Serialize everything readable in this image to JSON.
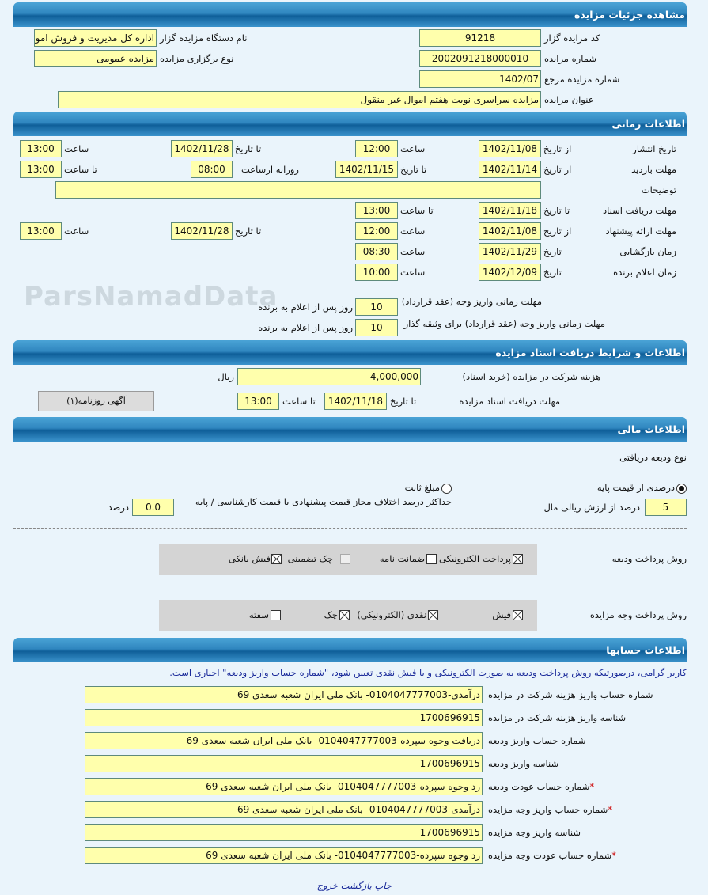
{
  "watermark": "ParsNamadData",
  "s1": {
    "title": "مشاهده جزئیات مزایده",
    "code_label": "کد مزایده گزار",
    "code": "91218",
    "org_label": "نام دستگاه مزایده گزار",
    "org": "اداره کل مدیریت و فروش اموال",
    "num_label": "شماره مزایده",
    "num": "2002091218000010",
    "type_label": "نوع برگزاری مزایده",
    "type": "مزایده عمومی",
    "ref_label": "شماره مزایده مرجع",
    "ref": "1402/07",
    "subject_label": "عنوان مزایده",
    "subject": "مزایده سراسری نوبت هفتم اموال غیر منقول"
  },
  "s2": {
    "title": "اطلاعات زمانی",
    "from_date": "از تاریخ",
    "to_date": "تا تاریخ",
    "date": "تاریخ",
    "time": "ساعت",
    "to_time": "تا ساعت",
    "daily_from": "روزانه ازساعت",
    "publish_label": "تاریخ انتشار",
    "publish_from": "1402/11/08",
    "publish_from_time": "12:00",
    "publish_to": "1402/11/28",
    "publish_to_time": "13:00",
    "visit_label": "مهلت بازدید",
    "visit_from": "1402/11/14",
    "visit_to": "1402/11/15",
    "visit_daily_from": "08:00",
    "visit_to_time": "13:00",
    "desc_label": "توضیحات",
    "desc": "",
    "docs_label": "مهلت دریافت اسناد",
    "docs_to": "1402/11/18",
    "docs_to_time": "13:00",
    "offer_label": "مهلت ارائه پیشنهاد",
    "offer_from": "1402/11/08",
    "offer_from_time": "12:00",
    "offer_to": "1402/11/28",
    "offer_to_time": "13:00",
    "open_label": "زمان بازگشایی",
    "open_date": "1402/11/29",
    "open_time": "08:30",
    "winner_label": "زمان اعلام برنده",
    "winner_date": "1402/12/09",
    "winner_time": "10:00",
    "pay_label": "مهلت زمانی واریز وجه (عقد قرارداد)",
    "pay_days": "10",
    "pay2_label": "مهلت زمانی واریز وجه (عقد قرارداد) برای وثیقه گذار",
    "pay2_days": "10",
    "days_suffix": "روز پس از اعلام به برنده"
  },
  "s3": {
    "title": "اطلاعات و شرایط دریافت اسناد مزایده",
    "fee_label": "هزینه شرکت در مزایده (خرید اسناد)",
    "fee": "4,000,000",
    "currency": "ریال",
    "deadline_label": "مهلت دریافت اسناد مزایده",
    "to_date": "تا تاریخ",
    "date": "1402/11/18",
    "to_time": "تا ساعت",
    "time": "13:00",
    "ad_button": "آگهی روزنامه(۱)"
  },
  "s4": {
    "title": "اطلاعات مالی",
    "deposit_type_label": "نوع ودیعه دریافتی",
    "opt_percent": "درصدی از قیمت پایه",
    "opt_fixed": "مبلغ ثابت",
    "percent": "5",
    "percent_label": "درصد از ارزش ریالی مال",
    "maxdiff_label": "حداکثر درصد اختلاف مجاز قیمت پیشنهادی با قیمت کارشناسی / پایه",
    "maxdiff": "0.0",
    "maxdiff_unit": "درصد",
    "deposit_method_label": "روش پرداخت ودیعه",
    "deposit_methods": [
      {
        "label": "پرداخت الکترونیکی",
        "checked": true
      },
      {
        "label": "ضمانت نامه",
        "checked": false
      },
      {
        "label": "چک تضمینی",
        "checked": false,
        "disabled": true
      },
      {
        "label": "فیش بانکی",
        "checked": true
      }
    ],
    "payment_method_label": "روش پرداخت وجه مزایده",
    "payment_methods": [
      {
        "label": "فیش",
        "checked": true
      },
      {
        "label": "نقدی (الکترونیکی)",
        "checked": true
      },
      {
        "label": "چک",
        "checked": true
      },
      {
        "label": "سفته",
        "checked": false
      }
    ]
  },
  "s5": {
    "title": "اطلاعات حسابها",
    "note": "کاربر گرامی، درصورتیکه روش پرداخت ودیعه به صورت الکترونیکی و یا فیش نقدی تعیین شود، \"شماره حساب واریز ودیعه\" اجباری است.",
    "rows": [
      {
        "label": "شماره حساب واریز هزینه شرکت در مزایده",
        "value": "درآمدی-0104047777003- بانک ملی ایران شعبه سعدی 69"
      },
      {
        "label": "شناسه واریز هزینه شرکت در مزایده",
        "value": "1700696915"
      },
      {
        "label": "شماره حساب واریز ودیعه",
        "value": "دریافت وجوه سپرده-0104047777003- بانک ملی ایران شعبه سعدی 69"
      },
      {
        "label": "شناسه واریز ودیعه",
        "value": "1700696915"
      },
      {
        "label": "شماره حساب عودت ودیعه",
        "value": "رد وجوه سپرده-0104047777003- بانک ملی ایران شعبه سعدی 69",
        "required": "*"
      },
      {
        "label": "شماره حساب واریز وجه مزایده",
        "value": "درآمدی-0104047777003- بانک ملی ایران شعبه سعدی 69",
        "required": "*"
      },
      {
        "label": "شناسه واریز وجه مزایده",
        "value": "1700696915"
      },
      {
        "label": "شماره حساب عودت وجه مزایده",
        "value": "رد وجوه سپرده-0104047777003- بانک ملی ایران شعبه سعدی 69",
        "required": "*"
      }
    ]
  },
  "footer": {
    "print": "چاپ",
    "back": "بازگشت",
    "exit": "خروج"
  }
}
